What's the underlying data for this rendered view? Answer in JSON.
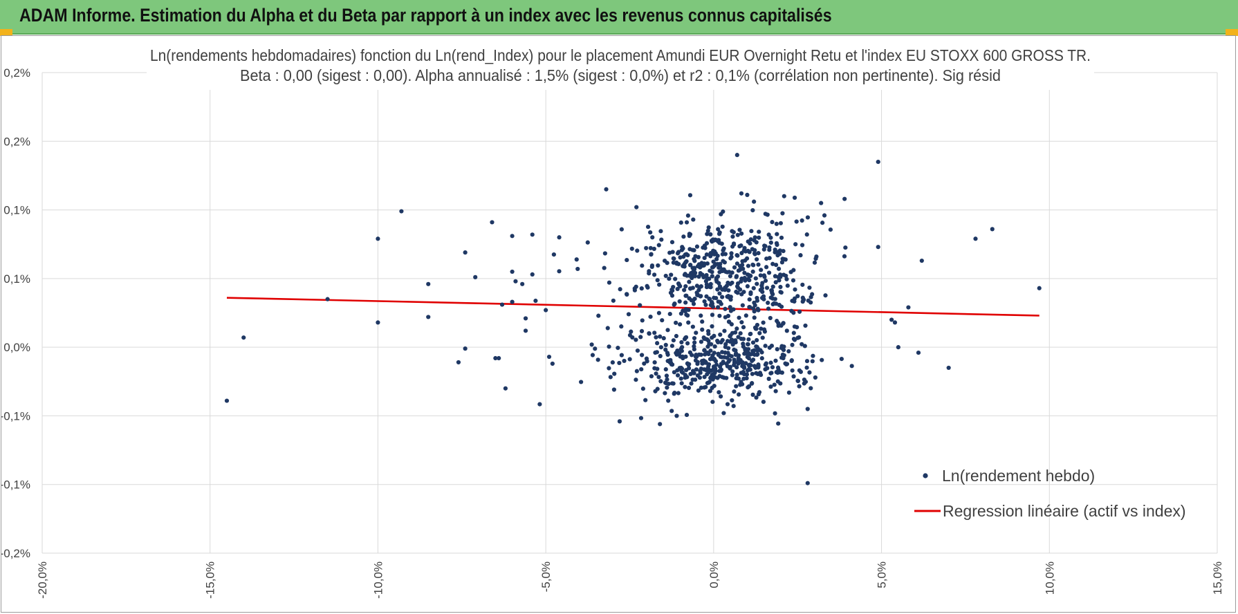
{
  "header": {
    "title": "ADAM Informe. Estimation du Alpha et du Beta par rapport à un index avec les revenus connus capitalisés"
  },
  "chart_data": {
    "type": "scatter",
    "title_line1": "Ln(rendements hebdomadaires) fonction du Ln(rend_Index) pour le placement Amundi EUR Overnight Retu et l'index EU STOXX 600 GROSS TR.",
    "title_line2": "Beta : 0,00 (sigest : 0,00).  Alpha annualisé : 1,5% (sigest : 0,0%) et r2 : 0,1% (corrélation non pertinente). Sig résid",
    "xlim": [
      -0.2,
      0.15
    ],
    "ylim": [
      -0.0015,
      0.002
    ],
    "x_ticks": [
      -0.2,
      -0.15,
      -0.1,
      -0.05,
      0.0,
      0.05,
      0.1,
      0.15
    ],
    "x_tick_labels": [
      "-20,0%",
      "-15,0%",
      "-10,0%",
      "-5,0%",
      "0,0%",
      "5,0%",
      "10,0%",
      "15,0%"
    ],
    "y_ticks": [
      0.002,
      0.0015,
      0.001,
      0.0005,
      0.0,
      -0.0005,
      -0.001,
      -0.0015
    ],
    "y_tick_labels": [
      "0,2%",
      "0,2%",
      "0,1%",
      "0,1%",
      "0,0%",
      "-0,1%",
      "-0,1%",
      "-0,2%"
    ],
    "grid": true,
    "legend_position": "bottom-right",
    "series": [
      {
        "name": "Ln(rendement hebdo)",
        "kind": "scatter",
        "color": "#1f3864",
        "generated_cluster_points": 1000,
        "points": [
          [
            -0.145,
            -0.00039
          ],
          [
            -0.14,
            7e-05
          ],
          [
            -0.115,
            0.00035
          ],
          [
            -0.1,
            0.00079
          ],
          [
            -0.1,
            0.00018
          ],
          [
            -0.093,
            0.00099
          ],
          [
            -0.085,
            0.00046
          ],
          [
            -0.085,
            0.00022
          ],
          [
            -0.076,
            -0.00011
          ],
          [
            -0.074,
            0.00069
          ],
          [
            -0.074,
            -1e-05
          ],
          [
            -0.071,
            0.00051
          ],
          [
            -0.066,
            0.00091
          ],
          [
            -0.065,
            -8e-05
          ],
          [
            -0.064,
            -8e-05
          ],
          [
            -0.063,
            0.00031
          ],
          [
            -0.062,
            -0.0003
          ],
          [
            -0.06,
            0.00081
          ],
          [
            -0.06,
            0.00055
          ],
          [
            -0.06,
            0.00033
          ],
          [
            -0.059,
            0.00048
          ],
          [
            -0.057,
            0.00046
          ],
          [
            -0.056,
            0.00021
          ],
          [
            -0.056,
            0.00012
          ],
          [
            -0.054,
            0.00082
          ],
          [
            -0.054,
            0.00053
          ],
          [
            -0.05,
            0.00027
          ],
          [
            -0.049,
            -7e-05
          ],
          [
            -0.048,
            -0.00012
          ],
          [
            -0.046,
            0.0008
          ],
          [
            -0.032,
            0.00115
          ],
          [
            -0.028,
            -0.00054
          ],
          [
            -0.023,
            0.00102
          ],
          [
            -0.016,
            -0.00056
          ],
          [
            -0.011,
            -0.0005
          ],
          [
            0.003,
            -0.00048
          ],
          [
            0.007,
            0.0014
          ],
          [
            0.021,
            0.0011
          ],
          [
            0.028,
            -0.00099
          ],
          [
            0.028,
            -0.00045
          ],
          [
            0.032,
            0.00105
          ],
          [
            0.033,
            0.00096
          ],
          [
            0.039,
            0.00108
          ],
          [
            0.049,
            0.00135
          ],
          [
            0.049,
            0.00073
          ],
          [
            0.053,
            0.0002
          ],
          [
            0.054,
            0.00018
          ],
          [
            0.055,
            0.0
          ],
          [
            0.058,
            0.00029
          ],
          [
            0.061,
            -4e-05
          ],
          [
            0.062,
            0.00063
          ],
          [
            0.07,
            -0.00015
          ],
          [
            0.078,
            0.00079
          ],
          [
            0.083,
            0.00086
          ],
          [
            0.097,
            0.00043
          ]
        ]
      },
      {
        "name": "Regression linéaire (actif vs index)",
        "kind": "line",
        "color": "#e00000",
        "x": [
          -0.145,
          0.097
        ],
        "y": [
          0.00036,
          0.00023
        ]
      }
    ]
  }
}
